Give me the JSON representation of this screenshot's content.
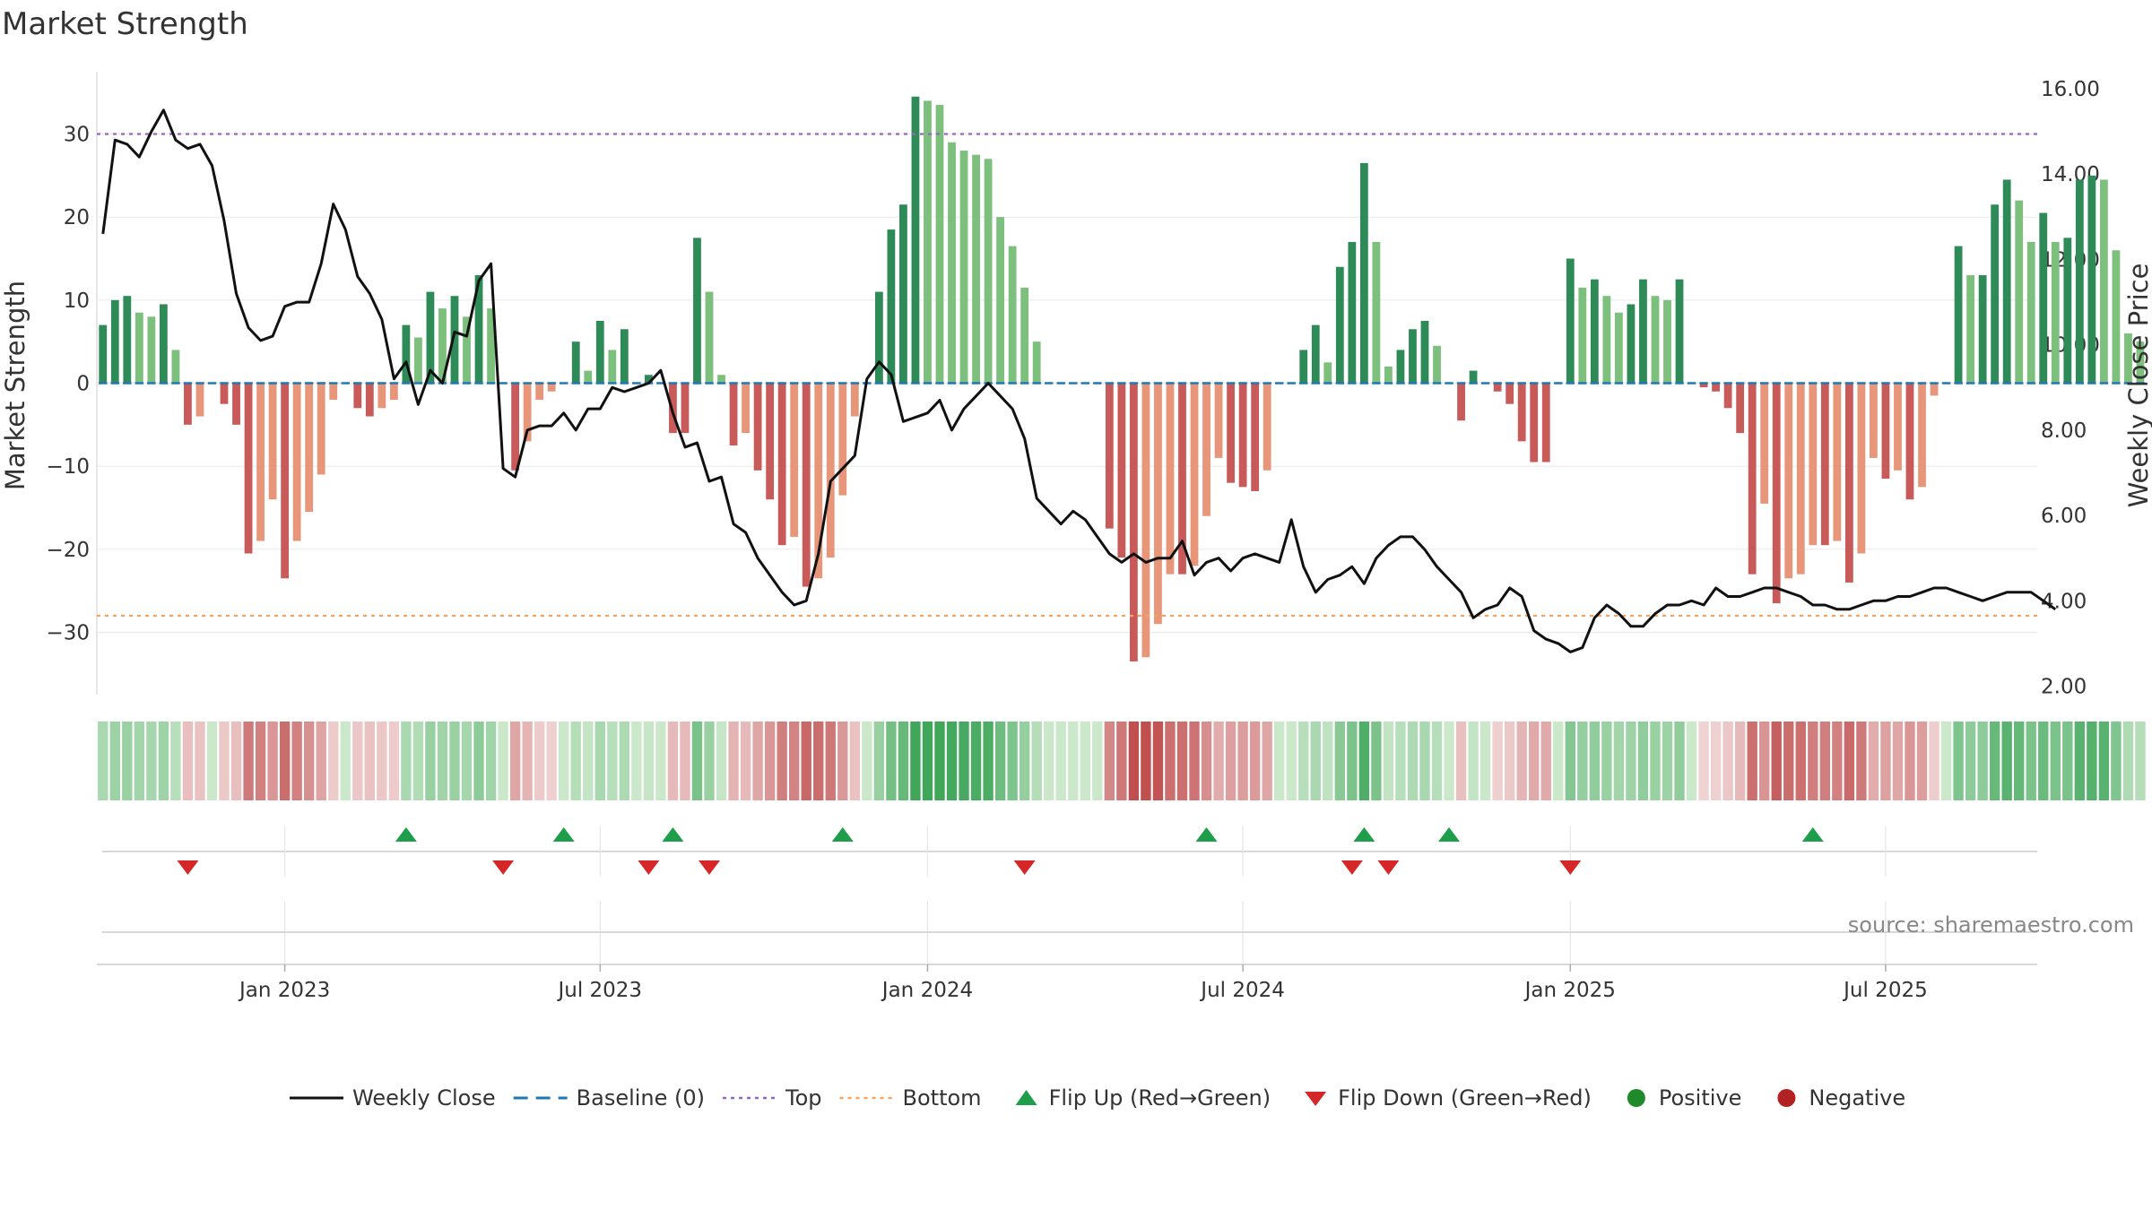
{
  "chart_data": {
    "type": "bar",
    "title": "Market Strength",
    "source": "source: sharemaestro.com",
    "ylabel_left": "Market Strength",
    "ylabel_right": "Weekly Close Price",
    "y_left_ticks": [
      30,
      20,
      10,
      0,
      -10,
      -20,
      -30
    ],
    "y_left_tick_labels": [
      "30",
      "20",
      "10",
      "0",
      "−10",
      "−20",
      "−30"
    ],
    "y_left_range": [
      -37.5,
      37.5
    ],
    "y_right_ticks": [
      16,
      14,
      12,
      10,
      8,
      6,
      4,
      2
    ],
    "y_right_tick_labels": [
      "16.00",
      "14.00",
      "12.00",
      "10.00",
      "8.00",
      "6.00",
      "4.00",
      "2.00"
    ],
    "y_right_range": [
      1.8,
      16.4
    ],
    "x_tick_labels": [
      "Jan 2023",
      "Jul 2023",
      "Jan 2024",
      "Jul 2024",
      "Jan 2025",
      "Jul 2025"
    ],
    "x_tick_weeks": [
      15,
      41,
      68,
      94,
      121,
      147
    ],
    "week_count": 160,
    "top_line": 30,
    "bottom_line": -28,
    "colors": {
      "positive_dark": "#2e8b57",
      "positive_light": "#7dbf7d",
      "negative_dark": "#c85a5a",
      "negative_light": "#e8967a",
      "close": "#111111",
      "baseline": "#1f77b4",
      "top": "#9467bd",
      "bottom": "#f4a460",
      "flip_up": "#1e9e4a",
      "flip_down": "#d62728",
      "positive_dot": "#1f8a2a",
      "negative_dot": "#b22222"
    },
    "strength": [
      7,
      10,
      10.5,
      8.5,
      8,
      9.5,
      4,
      -5,
      -4,
      0,
      -2.5,
      -5,
      -20.5,
      -19,
      -14,
      -23.5,
      -19,
      -15.5,
      -11,
      -2,
      0,
      -3,
      -4,
      -3,
      -2,
      7,
      5.5,
      11,
      9,
      10.5,
      8,
      13,
      9,
      0,
      -10.5,
      -7,
      -2,
      -1,
      0,
      5,
      1.5,
      7.5,
      4,
      6.5,
      0,
      1,
      0,
      -6,
      -6,
      17.5,
      11,
      1,
      -7.5,
      -6,
      -10.5,
      -14,
      -19.5,
      -18.5,
      -24.5,
      -23.5,
      -21,
      -13.5,
      -4,
      0,
      11,
      18.5,
      21.5,
      34.5,
      34,
      33.5,
      29,
      28,
      27.5,
      27,
      20,
      16.5,
      11.5,
      5,
      0,
      0,
      0,
      0,
      0,
      -17.5,
      -21,
      -33.5,
      -33,
      -29,
      -23,
      -23,
      -22,
      -16,
      -9,
      -12,
      -12.5,
      -13,
      -10.5,
      0,
      0,
      4,
      7,
      2.5,
      14,
      17,
      26.5,
      17,
      2,
      4,
      6.5,
      7.5,
      4.5,
      0,
      -4.5,
      1.5,
      0,
      -1,
      -2.5,
      -7,
      -9.5,
      -9.5,
      0,
      15,
      11.5,
      12.5,
      10.5,
      8.5,
      9.5,
      12.5,
      10.5,
      10,
      12.5,
      0,
      -0.5,
      -1,
      -3,
      -6,
      -23,
      -14.5,
      -26.5,
      -23.5,
      -23,
      -19.5,
      -19.5,
      -19,
      -24,
      -20.5,
      -9,
      -11.5,
      -10.5,
      -14,
      -12.5,
      -1.5,
      0,
      16.5,
      13,
      13,
      21.5,
      24.5,
      22,
      17,
      20.5,
      17,
      17.5,
      24.5,
      25,
      24.5,
      16,
      6,
      5
    ],
    "weekly_close": [
      12.6,
      14.8,
      14.7,
      14.4,
      15,
      15.5,
      14.8,
      14.6,
      14.7,
      14.2,
      12.9,
      11.2,
      10.4,
      10.1,
      10.2,
      10.9,
      11,
      11,
      11.9,
      13.3,
      12.7,
      11.6,
      11.2,
      10.6,
      9.2,
      9.6,
      8.6,
      9.4,
      9.1,
      10.3,
      10.2,
      11.5,
      11.9,
      7.1,
      6.9,
      8,
      8.1,
      8.1,
      8.4,
      8,
      8.5,
      8.5,
      9,
      8.9,
      9,
      9.1,
      9.4,
      8.4,
      7.6,
      7.7,
      6.8,
      6.9,
      5.8,
      5.6,
      5,
      4.6,
      4.2,
      3.9,
      4,
      5.1,
      6.8,
      7.1,
      7.4,
      9.2,
      9.6,
      9.3,
      8.2,
      8.3,
      8.4,
      8.7,
      8,
      8.5,
      8.8,
      9.1,
      8.8,
      8.5,
      7.8,
      6.4,
      6.1,
      5.8,
      6.1,
      5.9,
      5.5,
      5.1,
      4.9,
      5.1,
      4.9,
      5,
      5,
      5.4,
      4.6,
      4.9,
      5,
      4.7,
      5,
      5.1,
      5,
      4.9,
      5.9,
      4.8,
      4.2,
      4.5,
      4.6,
      4.8,
      4.4,
      5,
      5.3,
      5.5,
      5.5,
      5.2,
      4.8,
      4.5,
      4.2,
      3.6,
      3.8,
      3.9,
      4.3,
      4.1,
      3.3,
      3.1,
      3,
      2.8,
      2.9,
      3.6,
      3.9,
      3.7,
      3.4,
      3.4,
      3.7,
      3.9,
      3.9,
      4,
      3.9,
      4.3,
      4.1,
      4.1,
      4.2,
      4.3,
      4.3,
      4.2,
      4.1,
      3.9,
      3.9,
      3.8,
      3.8,
      3.9,
      4,
      4,
      4.1,
      4.1,
      4.2,
      4.3,
      4.3,
      4.2,
      4.1,
      4,
      4.1,
      4.2,
      4.2,
      4.2,
      4,
      3.8
    ],
    "flip_up_weeks": [
      25,
      38,
      47,
      61,
      91,
      104,
      111,
      141
    ],
    "flip_down_weeks": [
      7,
      33,
      45,
      50,
      76,
      103,
      106,
      121
    ],
    "legend": [
      {
        "label": "Weekly Close",
        "symbol": "line"
      },
      {
        "label": "Baseline (0)",
        "symbol": "dash"
      },
      {
        "label": "Top",
        "symbol": "dot-purple"
      },
      {
        "label": "Bottom",
        "symbol": "dot-orange"
      },
      {
        "label": "Flip Up (Red→Green)",
        "symbol": "tri-up"
      },
      {
        "label": "Flip Down (Green→Red)",
        "symbol": "tri-down"
      },
      {
        "label": "Positive",
        "symbol": "dot-green"
      },
      {
        "label": "Negative",
        "symbol": "dot-red"
      }
    ]
  }
}
